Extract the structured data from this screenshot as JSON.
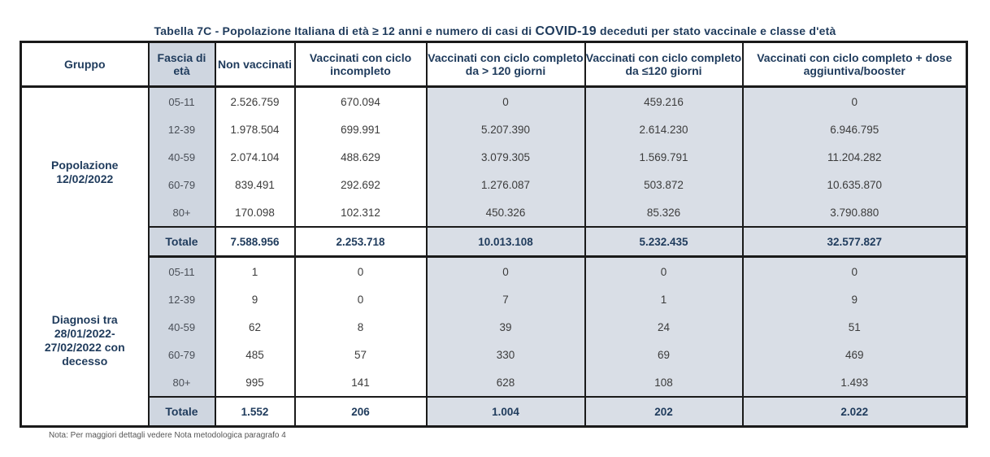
{
  "title": {
    "prefix": "Tabella 7C - Popolazione Italiana di età ≥ 12 anni e numero di casi di ",
    "covid": "COVID-19",
    "suffix": " deceduti per stato vaccinale e classe d'età"
  },
  "headers": {
    "gruppo": "Gruppo",
    "fascia": "Fascia di età",
    "non_vacc": "Non vaccinati",
    "incompleto": "Vaccinati con ciclo incompleto",
    "completo_120": "Vaccinati con ciclo completo da > 120 giorni",
    "completo_le120": "Vaccinati con ciclo completo da ≤120 giorni",
    "booster": "Vaccinati con ciclo completo + dose aggiuntiva/booster"
  },
  "groups": [
    {
      "label": "Popolazione 12/02/2022",
      "rows": [
        {
          "fascia": "05-11",
          "v": [
            "2.526.759",
            "670.094",
            "0",
            "459.216",
            "0"
          ]
        },
        {
          "fascia": "12-39",
          "v": [
            "1.978.504",
            "699.991",
            "5.207.390",
            "2.614.230",
            "6.946.795"
          ]
        },
        {
          "fascia": "40-59",
          "v": [
            "2.074.104",
            "488.629",
            "3.079.305",
            "1.569.791",
            "11.204.282"
          ]
        },
        {
          "fascia": "60-79",
          "v": [
            "839.491",
            "292.692",
            "1.276.087",
            "503.872",
            "10.635.870"
          ]
        },
        {
          "fascia": "80+",
          "v": [
            "170.098",
            "102.312",
            "450.326",
            "85.326",
            "3.790.880"
          ]
        }
      ],
      "total_label": "Totale",
      "total": [
        "7.588.956",
        "2.253.718",
        "10.013.108",
        "5.232.435",
        "32.577.827"
      ]
    },
    {
      "label": "Diagnosi tra 28/01/2022- 27/02/2022 con decesso",
      "rows": [
        {
          "fascia": "05-11",
          "v": [
            "1",
            "0",
            "0",
            "0",
            "0"
          ]
        },
        {
          "fascia": "12-39",
          "v": [
            "9",
            "0",
            "7",
            "1",
            "9"
          ]
        },
        {
          "fascia": "40-59",
          "v": [
            "62",
            "8",
            "39",
            "24",
            "51"
          ]
        },
        {
          "fascia": "60-79",
          "v": [
            "485",
            "57",
            "330",
            "69",
            "469"
          ]
        },
        {
          "fascia": "80+",
          "v": [
            "995",
            "141",
            "628",
            "108",
            "1.493"
          ]
        }
      ],
      "total_label": "Totale",
      "total": [
        "1.552",
        "206",
        "1.004",
        "202",
        "2.022"
      ]
    }
  ],
  "note": "Nota: Per maggiori dettagli vedere Nota metodologica paragrafo 4"
}
